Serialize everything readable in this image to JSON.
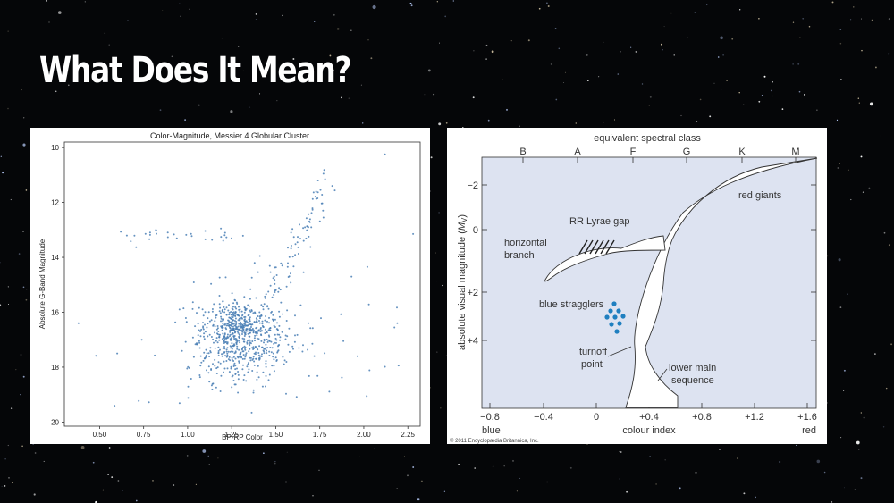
{
  "slide": {
    "title": "What Does It Mean?"
  },
  "colors": {
    "background": "#050608",
    "scatter_point": "#4a7fb5",
    "hr_fill": "#dde3f1",
    "stragglers": "#1f7fc0"
  },
  "chart_data": [
    {
      "type": "scatter",
      "title": "Color-Magnitude, Messier 4 Globular Cluster",
      "xlabel": "BP-RP Color",
      "ylabel": "Absolute G-Band Magnitude",
      "xlim": [
        0.3,
        2.32
      ],
      "ylim": [
        20.15,
        9.8
      ],
      "y_inverted": true,
      "xticks": [
        "0.50",
        "0.75",
        "1.00",
        "1.25",
        "1.50",
        "1.75",
        "2.00",
        "2.25"
      ],
      "yticks": [
        "10",
        "12",
        "14",
        "16",
        "18",
        "20"
      ],
      "grid": false,
      "points_note": "dense clump near BP-RP 1.2-1.4, magnitude 16-18; red giant branch rising to magnitude ~11"
    },
    {
      "type": "diagram",
      "top_axis_label": "equivalent spectral class",
      "spectral_classes": [
        "B",
        "A",
        "F",
        "G",
        "K",
        "M"
      ],
      "xlabel": "colour index",
      "ylabel": "absolute visual magnitude (Mv)",
      "xticks": [
        "−0.8",
        "−0.4",
        "0",
        "+0.4",
        "+0.8",
        "+1.2",
        "+1.6"
      ],
      "yticks": [
        "−2",
        "0",
        "+2",
        "+4"
      ],
      "x_end_labels": {
        "left": "blue",
        "right": "red"
      },
      "regions": [
        "red giants",
        "RR Lyrae gap",
        "horizontal branch",
        "blue stragglers",
        "turnoff point",
        "lower main sequence"
      ],
      "copyright": "© 2011 Encyclopædia Britannica, Inc."
    }
  ]
}
